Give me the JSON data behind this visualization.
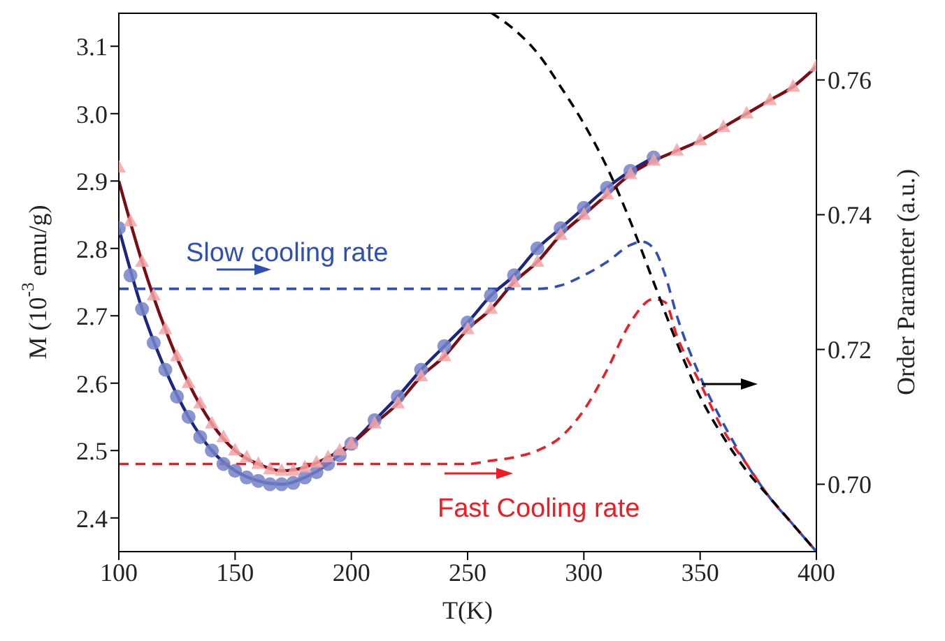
{
  "chart_data": {
    "type": "line",
    "xlabel": "T(K)",
    "ylabel": "M (10$^{-3}$ emu/g)",
    "y2label": "Order Parameter (a.u.)",
    "xlim": [
      100,
      400
    ],
    "xticks": [
      100,
      150,
      200,
      250,
      300,
      350,
      400
    ],
    "ylim": [
      2.35,
      3.15
    ],
    "yticks": [
      2.4,
      2.5,
      2.6,
      2.7,
      2.8,
      2.9,
      {
        "value": 3,
        "label": "3.0"
      },
      3.1
    ],
    "y2lim": [
      0.69,
      0.77
    ],
    "y2ticks": [
      {
        "value": 0.7,
        "label": "0.70"
      },
      0.72,
      0.74,
      0.76
    ],
    "grid": false,
    "legend": false,
    "annotations": [
      "Slow cooling rate",
      "Fast Cooling rate"
    ],
    "series": [
      {
        "type": "scatter",
        "marker": "circle",
        "color": "#7482c9",
        "x": [
          100,
          105,
          110,
          115,
          120,
          125,
          130,
          135,
          140,
          145,
          150,
          155,
          160,
          165,
          170,
          175,
          180,
          185,
          190,
          195,
          200,
          210,
          220,
          230,
          240,
          250,
          260,
          270,
          280,
          290,
          300,
          310,
          320,
          330
        ],
        "values": [
          2.83,
          2.76,
          2.71,
          2.66,
          2.62,
          2.58,
          2.55,
          2.52,
          2.5,
          2.48,
          2.47,
          2.46,
          2.455,
          2.45,
          2.45,
          2.452,
          2.46,
          2.468,
          2.48,
          2.493,
          2.51,
          2.545,
          2.58,
          2.62,
          2.655,
          2.69,
          2.73,
          2.76,
          2.8,
          2.83,
          2.86,
          2.89,
          2.915,
          2.935
        ]
      },
      {
        "type": "scatter",
        "marker": "triangle",
        "color": "#f4a3a6",
        "x": [
          100,
          105,
          110,
          115,
          120,
          125,
          130,
          135,
          140,
          145,
          150,
          155,
          160,
          165,
          170,
          175,
          180,
          185,
          190,
          195,
          200,
          210,
          220,
          230,
          240,
          250,
          260,
          270,
          280,
          290,
          300,
          310,
          320,
          330,
          340,
          350,
          360,
          370,
          380,
          390,
          400
        ],
        "values": [
          2.92,
          2.84,
          2.78,
          2.73,
          2.68,
          2.64,
          2.6,
          2.57,
          2.54,
          2.52,
          2.5,
          2.49,
          2.48,
          2.472,
          2.47,
          2.47,
          2.475,
          2.482,
          2.49,
          2.5,
          2.51,
          2.54,
          2.57,
          2.61,
          2.64,
          2.68,
          2.71,
          2.75,
          2.78,
          2.82,
          2.85,
          2.88,
          2.91,
          2.93,
          2.945,
          2.96,
          2.98,
          3.0,
          3.02,
          3.04,
          3.07
        ]
      },
      {
        "marker": "none",
        "color": "#1c2680",
        "x": [
          100,
          110,
          120,
          130,
          140,
          150,
          160,
          170,
          180,
          190,
          200,
          210,
          220,
          230,
          240,
          250,
          260,
          270,
          280,
          290,
          300,
          310,
          320,
          330
        ],
        "values": [
          2.83,
          2.71,
          2.62,
          2.55,
          2.5,
          2.47,
          2.455,
          2.45,
          2.46,
          2.48,
          2.51,
          2.545,
          2.58,
          2.62,
          2.655,
          2.69,
          2.73,
          2.76,
          2.8,
          2.83,
          2.86,
          2.89,
          2.915,
          2.935
        ]
      },
      {
        "marker": "none",
        "color": "#7a0d14",
        "x": [
          100,
          110,
          120,
          130,
          140,
          150,
          160,
          170,
          180,
          190,
          200,
          210,
          220,
          230,
          240,
          250,
          260,
          270,
          280,
          290,
          300,
          310,
          320,
          330,
          340,
          350,
          360,
          370,
          380,
          390,
          400
        ],
        "values": [
          2.9,
          2.78,
          2.68,
          2.6,
          2.54,
          2.5,
          2.48,
          2.47,
          2.475,
          2.49,
          2.51,
          2.54,
          2.57,
          2.61,
          2.64,
          2.68,
          2.71,
          2.75,
          2.78,
          2.82,
          2.85,
          2.88,
          2.91,
          2.93,
          2.945,
          2.96,
          2.98,
          3.0,
          3.02,
          3.04,
          3.07
        ]
      },
      {
        "axis": "y2",
        "marker": "none",
        "line_style": "dashed",
        "color": "#2f4fb5",
        "x": [
          100,
          150,
          200,
          250,
          280,
          290,
          300,
          310,
          320,
          325,
          330,
          335,
          340,
          350,
          360,
          370,
          380,
          390,
          400
        ],
        "values": [
          0.729,
          0.729,
          0.729,
          0.729,
          0.729,
          0.7295,
          0.731,
          0.733,
          0.7355,
          0.736,
          0.735,
          0.731,
          0.725,
          0.716,
          0.709,
          0.703,
          0.698,
          0.694,
          0.69
        ]
      },
      {
        "axis": "y2",
        "marker": "none",
        "line_style": "dashed",
        "color": "#ee1c24",
        "x": [
          100,
          150,
          200,
          250,
          260,
          270,
          280,
          290,
          300,
          310,
          320,
          330,
          335,
          340,
          350,
          360,
          370,
          380,
          390,
          400
        ],
        "values": [
          0.703,
          0.703,
          0.703,
          0.703,
          0.7035,
          0.704,
          0.705,
          0.707,
          0.711,
          0.717,
          0.724,
          0.7275,
          0.727,
          0.722,
          0.715,
          0.708,
          0.703,
          0.698,
          0.694,
          0.69
        ]
      },
      {
        "axis": "y2",
        "marker": "none",
        "line_style": "dashed",
        "color": "#000000",
        "x": [
          260,
          270,
          280,
          290,
          300,
          310,
          320,
          330,
          340,
          350,
          360,
          370,
          380,
          390,
          400
        ],
        "values": [
          0.77,
          0.7675,
          0.764,
          0.759,
          0.7535,
          0.747,
          0.739,
          0.73,
          0.721,
          0.713,
          0.707,
          0.702,
          0.698,
          0.694,
          0.69
        ]
      }
    ]
  }
}
